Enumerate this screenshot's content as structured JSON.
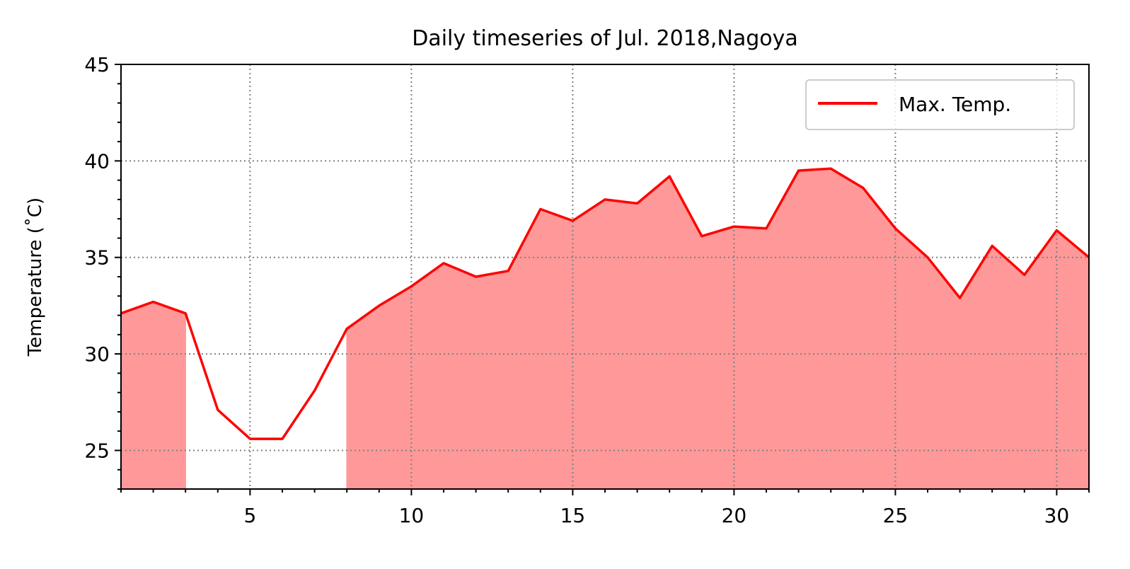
{
  "chart_data": {
    "type": "area",
    "title": "Daily timeseries of Jul. 2018,Nagoya",
    "ylabel": "Temperature (˚C)",
    "xlabel": "",
    "xlim": [
      1,
      31
    ],
    "ylim": [
      23,
      45
    ],
    "xticks_major": [
      5,
      10,
      15,
      20,
      25,
      30
    ],
    "yticks_major": [
      25,
      30,
      35,
      40,
      45
    ],
    "grid": true,
    "legend_position": "top-right",
    "fill_threshold": 30,
    "fill_color": "#ff9999",
    "line_color": "#ff0000",
    "series": [
      {
        "name": "Max. Temp.",
        "x": [
          1,
          2,
          3,
          4,
          5,
          6,
          7,
          8,
          9,
          10,
          11,
          12,
          13,
          14,
          15,
          16,
          17,
          18,
          19,
          20,
          21,
          22,
          23,
          24,
          25,
          26,
          27,
          28,
          29,
          30,
          31
        ],
        "values": [
          32.1,
          32.7,
          32.1,
          27.1,
          25.6,
          25.6,
          28.1,
          31.3,
          32.5,
          33.5,
          34.7,
          34.0,
          34.3,
          37.5,
          36.9,
          38.0,
          37.8,
          39.2,
          36.1,
          36.6,
          36.5,
          39.5,
          39.6,
          38.6,
          36.5,
          35.0,
          32.9,
          35.6,
          34.1,
          36.4,
          35.0
        ]
      }
    ]
  }
}
